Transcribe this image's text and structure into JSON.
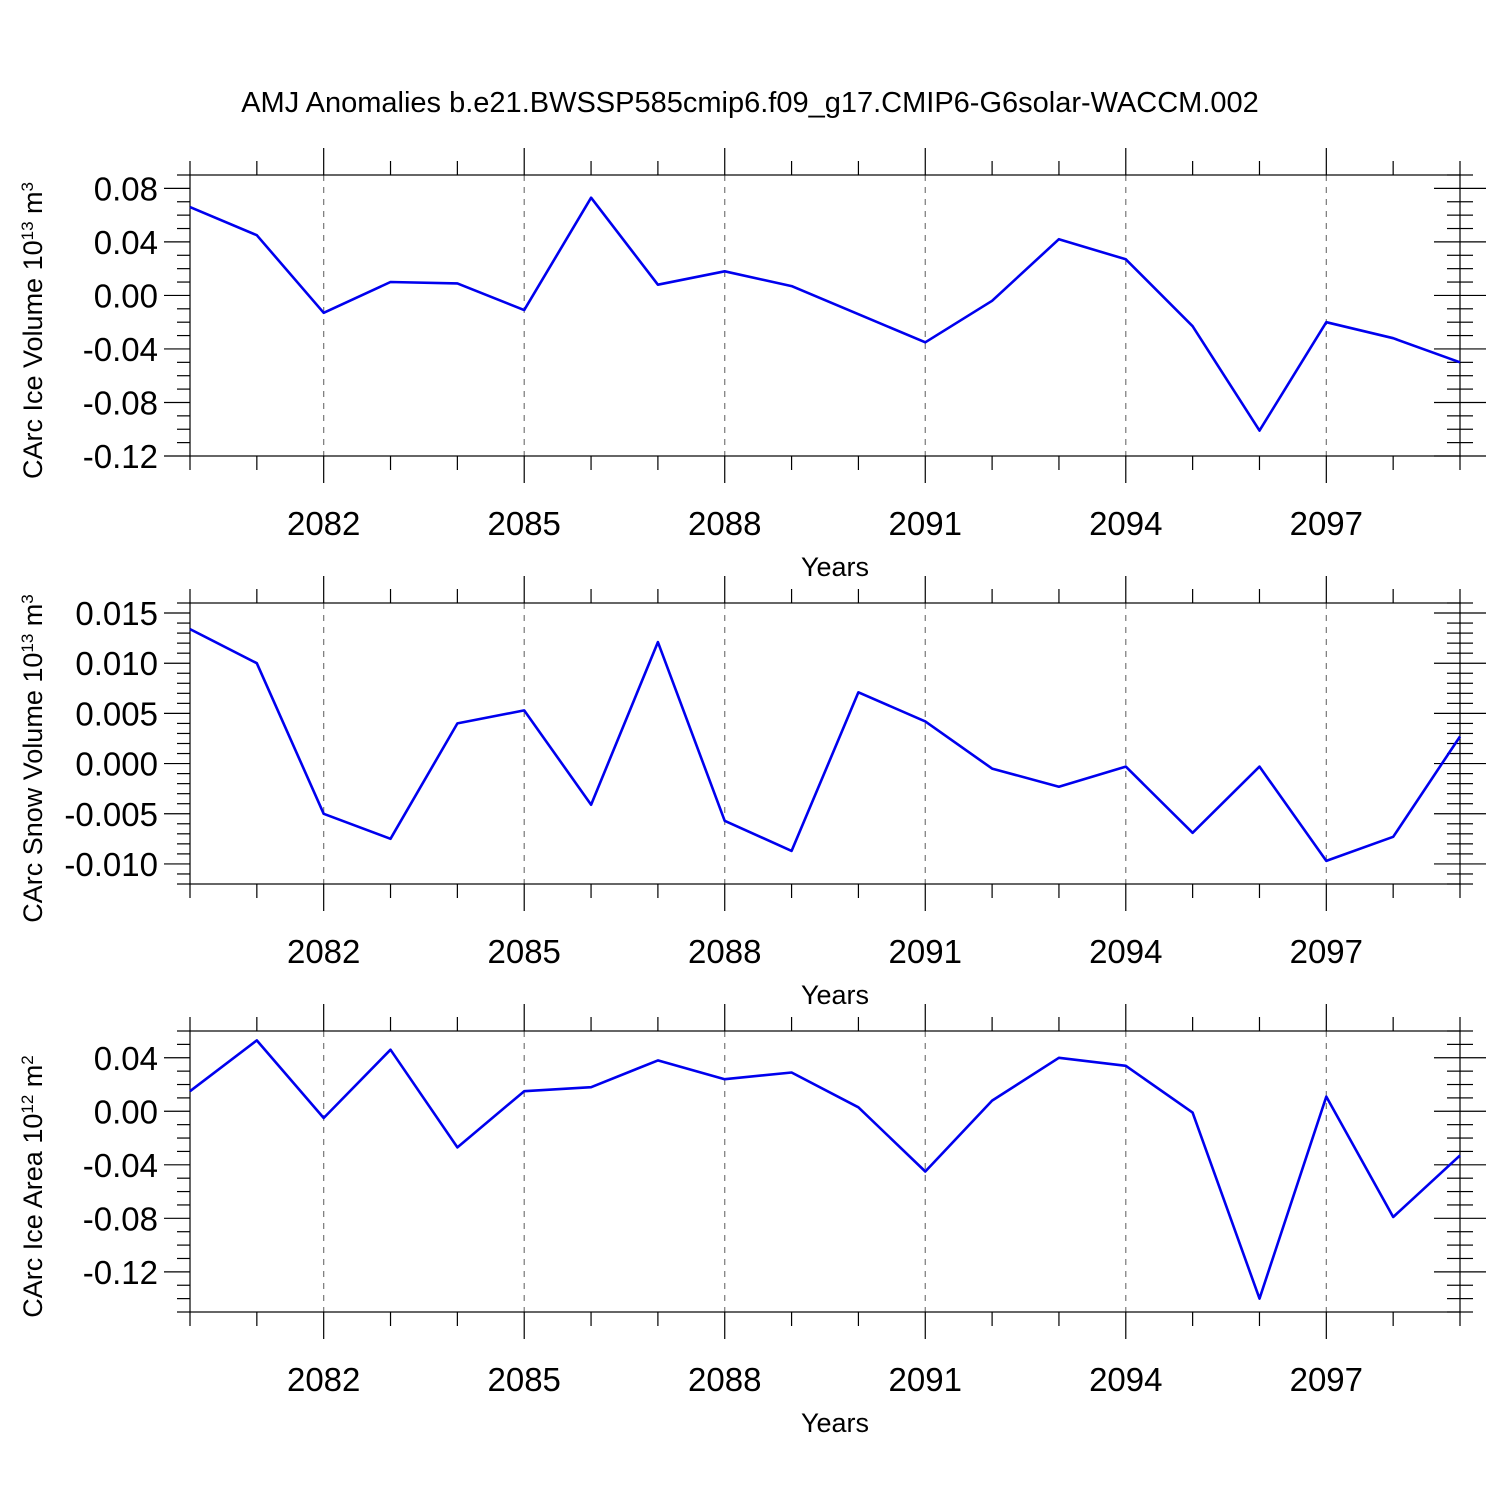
{
  "title": "AMJ Anomalies b.e21.BWSSP585cmip6.f09_g17.CMIP6-G6solar-WACCM.002",
  "line_color": "#0000ee",
  "chart_data": [
    {
      "type": "line",
      "xlabel": "Years",
      "ylabel": {
        "text": "CArc Ice Volume 10",
        "exp": "13",
        "unit": " m",
        "unit_exp": "3"
      },
      "xlim": [
        2080,
        2099
      ],
      "ylim": [
        -0.12,
        0.09
      ],
      "x_major_ticks": [
        2082,
        2085,
        2088,
        2091,
        2094,
        2097
      ],
      "y_major_ticks": [
        -0.12,
        -0.08,
        -0.04,
        0.0,
        0.04,
        0.08
      ],
      "y_tick_labels": [
        "-0.12",
        "-0.08",
        "-0.04",
        "0.00",
        "0.04",
        "0.08"
      ],
      "y_minor_step": 0.01,
      "x": [
        2080,
        2081,
        2082,
        2083,
        2084,
        2085,
        2086,
        2087,
        2088,
        2089,
        2090,
        2091,
        2092,
        2093,
        2094,
        2095,
        2096,
        2097,
        2098,
        2099
      ],
      "series": [
        {
          "values": [
            0.066,
            0.045,
            -0.013,
            0.01,
            0.009,
            -0.011,
            0.073,
            0.008,
            0.018,
            0.007,
            -0.014,
            -0.035,
            -0.004,
            0.042,
            0.027,
            -0.023,
            -0.101,
            -0.02,
            -0.032,
            -0.05
          ]
        }
      ]
    },
    {
      "type": "line",
      "xlabel": "Years",
      "ylabel": {
        "text": "CArc Snow Volume 10",
        "exp": "13",
        "unit": " m",
        "unit_exp": "3"
      },
      "xlim": [
        2080,
        2099
      ],
      "ylim": [
        -0.012,
        0.016
      ],
      "x_major_ticks": [
        2082,
        2085,
        2088,
        2091,
        2094,
        2097
      ],
      "y_major_ticks": [
        -0.01,
        -0.005,
        0.0,
        0.005,
        0.01,
        0.015
      ],
      "y_tick_labels": [
        "-0.010",
        "-0.005",
        "0.000",
        "0.005",
        "0.010",
        "0.015"
      ],
      "y_minor_step": 0.001,
      "x": [
        2080,
        2081,
        2082,
        2083,
        2084,
        2085,
        2086,
        2087,
        2088,
        2089,
        2090,
        2091,
        2092,
        2093,
        2094,
        2095,
        2096,
        2097,
        2098,
        2099
      ],
      "series": [
        {
          "values": [
            0.0134,
            0.01,
            -0.005,
            -0.0075,
            0.004,
            0.0053,
            -0.0041,
            0.0121,
            -0.0057,
            -0.0087,
            0.0071,
            0.0042,
            -0.0005,
            -0.0023,
            -0.0003,
            -0.0069,
            -0.0003,
            -0.0097,
            -0.0073,
            0.0027
          ]
        }
      ]
    },
    {
      "type": "line",
      "xlabel": "Years",
      "ylabel": {
        "text": "CArc Ice Area 10",
        "exp": "12",
        "unit": " m",
        "unit_exp": "2"
      },
      "xlim": [
        2080,
        2099
      ],
      "ylim": [
        -0.15,
        0.06
      ],
      "x_major_ticks": [
        2082,
        2085,
        2088,
        2091,
        2094,
        2097
      ],
      "y_major_ticks": [
        -0.12,
        -0.08,
        -0.04,
        0.0,
        0.04
      ],
      "y_tick_labels": [
        "-0.12",
        "-0.08",
        "-0.04",
        "0.00",
        "0.04"
      ],
      "y_minor_step": 0.01,
      "x": [
        2080,
        2081,
        2082,
        2083,
        2084,
        2085,
        2086,
        2087,
        2088,
        2089,
        2090,
        2091,
        2092,
        2093,
        2094,
        2095,
        2096,
        2097,
        2098,
        2099
      ],
      "series": [
        {
          "values": [
            0.015,
            0.053,
            -0.005,
            0.046,
            -0.027,
            0.015,
            0.018,
            0.038,
            0.024,
            0.029,
            0.003,
            -0.045,
            0.008,
            0.04,
            0.034,
            -0.001,
            -0.14,
            0.011,
            -0.079,
            -0.033
          ]
        }
      ]
    }
  ]
}
